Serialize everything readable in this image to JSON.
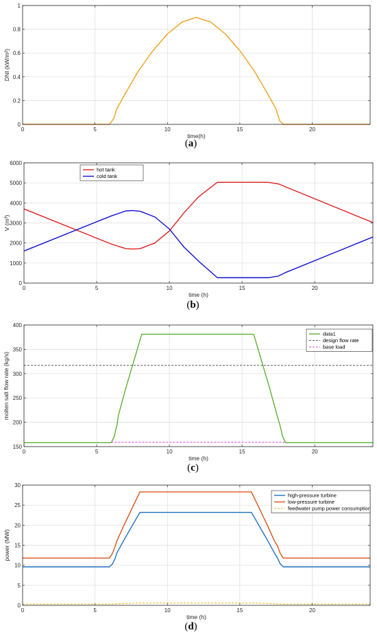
{
  "chart_data": [
    {
      "type": "line",
      "caption": "a",
      "xlabel": "time(h)",
      "ylabel": "DNI (kW/m²)",
      "xlim": [
        0,
        24
      ],
      "ylim": [
        0,
        1
      ],
      "xticks": [
        0,
        5,
        10,
        15,
        20
      ],
      "yticks": [
        0,
        0.2,
        0.4,
        0.6,
        0.8,
        1
      ],
      "ytick_labels": [
        "0",
        "0.2",
        "0.4",
        "0.6",
        "0.8",
        "1"
      ],
      "grid": true,
      "legend": null,
      "series": [
        {
          "color": "#F0A020",
          "dash": "",
          "x": [
            0,
            6,
            6.3,
            6.5,
            7,
            8,
            9,
            10,
            11,
            12,
            13,
            14,
            15,
            16,
            17,
            17.5,
            17.75,
            18,
            24
          ],
          "y": [
            0,
            0,
            0.05,
            0.13,
            0.24,
            0.45,
            0.62,
            0.76,
            0.86,
            0.9,
            0.86,
            0.76,
            0.62,
            0.45,
            0.24,
            0.13,
            0.03,
            0,
            0
          ]
        }
      ]
    },
    {
      "type": "line",
      "caption": "b",
      "xlabel": "time (h)",
      "ylabel": "V (m³)",
      "xlim": [
        0,
        24
      ],
      "ylim": [
        0,
        6000
      ],
      "xticks": [
        0,
        5,
        10,
        15,
        20
      ],
      "yticks": [
        0,
        1000,
        2000,
        3000,
        4000,
        5000,
        6000
      ],
      "ytick_labels": [
        "0",
        "1000",
        "2000",
        "3000",
        "4000",
        "5000",
        "6000"
      ],
      "grid": true,
      "legend": {
        "position": "top-left"
      },
      "series": [
        {
          "name": "hot tank",
          "color": "#E02020",
          "dash": "",
          "x": [
            0,
            6,
            7,
            7.5,
            8,
            9,
            10,
            11,
            12,
            13.3,
            16.8,
            17.5,
            18,
            24
          ],
          "y": [
            3700,
            1950,
            1720,
            1700,
            1720,
            2000,
            2600,
            3500,
            4300,
            5030,
            5030,
            4950,
            4800,
            3020
          ]
        },
        {
          "name": "cold tank",
          "color": "#1010D0",
          "dash": "",
          "x": [
            0,
            6,
            7,
            7.5,
            8,
            9,
            10,
            11,
            12,
            13.3,
            16.8,
            17.5,
            18,
            24
          ],
          "y": [
            1600,
            3350,
            3600,
            3620,
            3580,
            3300,
            2700,
            1800,
            1100,
            270,
            270,
            350,
            530,
            2300
          ]
        }
      ]
    },
    {
      "type": "line",
      "caption": "c",
      "xlabel": "time (h)",
      "ylabel": "molten salt flow rate (kg/s)",
      "xlim": [
        0,
        24
      ],
      "ylim": [
        150,
        400
      ],
      "xticks": [
        0,
        5,
        10,
        15,
        20
      ],
      "yticks": [
        150,
        200,
        250,
        300,
        350,
        400
      ],
      "ytick_labels": [
        "150",
        "200",
        "250",
        "300",
        "350",
        "400"
      ],
      "grid": true,
      "legend": {
        "position": "top-right"
      },
      "series": [
        {
          "name": "data1",
          "color": "#5DB030",
          "dash": "",
          "x": [
            0,
            6,
            6.2,
            6.4,
            6.5,
            7,
            8.1,
            15.8,
            16.9,
            17.4,
            17.6,
            17.8,
            18,
            24
          ],
          "y": [
            158,
            158,
            170,
            195,
            215,
            270,
            381,
            381,
            270,
            215,
            195,
            170,
            158,
            158
          ]
        },
        {
          "name": "design flow rate",
          "color": "#555555",
          "dash": "3,2",
          "x": [
            0,
            24
          ],
          "y": [
            317,
            317
          ]
        },
        {
          "name": "base load",
          "color": "#E040E0",
          "dash": "3,2",
          "x": [
            6,
            18
          ],
          "y": [
            159,
            159
          ]
        }
      ]
    },
    {
      "type": "line",
      "caption": "d",
      "xlabel": "time (h)",
      "ylabel": "power (MW)",
      "xlim": [
        0,
        24
      ],
      "ylim": [
        0,
        30
      ],
      "xticks": [
        0,
        5,
        10,
        15,
        20
      ],
      "yticks": [
        0,
        5,
        10,
        15,
        20,
        25,
        30
      ],
      "ytick_labels": [
        "0",
        "5",
        "10",
        "15",
        "20",
        "25",
        "30"
      ],
      "grid": true,
      "legend": {
        "position": "top-right"
      },
      "series": [
        {
          "name": "high-pressure turbine",
          "color": "#1F6FC0",
          "dash": "",
          "x": [
            0,
            6,
            6.2,
            6.4,
            6.5,
            7,
            8.1,
            15.8,
            16.9,
            17.4,
            17.6,
            17.8,
            18,
            24
          ],
          "y": [
            9.6,
            9.6,
            10.3,
            11.8,
            13,
            16.3,
            23.2,
            23.2,
            16.3,
            13,
            11.8,
            10.3,
            9.6,
            9.6
          ]
        },
        {
          "name": "low-pressure turbine",
          "color": "#D95319",
          "dash": "",
          "x": [
            0,
            6,
            6.2,
            6.4,
            6.5,
            7,
            8.1,
            15.8,
            16.9,
            17.4,
            17.6,
            17.8,
            18,
            24
          ],
          "y": [
            11.8,
            11.8,
            12.9,
            14.8,
            16,
            20,
            28.3,
            28.3,
            20,
            16,
            14.8,
            12.9,
            11.8,
            11.8
          ]
        },
        {
          "name": "feedwater pump power consumption",
          "color": "#EDB120",
          "dash": "3,2",
          "x": [
            0,
            6,
            8,
            16,
            18,
            24
          ],
          "y": [
            0.3,
            0.3,
            0.6,
            0.6,
            0.3,
            0.3
          ]
        }
      ]
    }
  ]
}
